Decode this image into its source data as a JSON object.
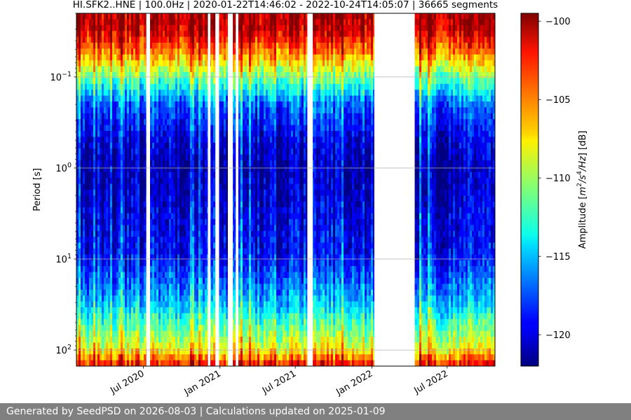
{
  "chart_data": {
    "type": "heatmap",
    "title": "HI.SFK2..HNE | 100.0Hz | 2020-01-22T14:46:02 - 2022-10-24T14:05:07 | 36665 segments",
    "ylabel": "Period [s]",
    "xlabel": "",
    "y_scale": "log",
    "y_inverted": true,
    "ylim": [
      0.02,
      150
    ],
    "y_ticks": [
      {
        "value": 0.1,
        "base": "10",
        "exp": "−1"
      },
      {
        "value": 1,
        "base": "10",
        "exp": "0"
      },
      {
        "value": 10,
        "base": "10",
        "exp": "1"
      },
      {
        "value": 100,
        "base": "10",
        "exp": "2"
      }
    ],
    "x_range": [
      "2020-01-22",
      "2022-10-24"
    ],
    "x_ticks": [
      {
        "value": "2020-07-01",
        "label": "Jul 2020"
      },
      {
        "value": "2021-01-01",
        "label": "Jan 2021"
      },
      {
        "value": "2021-07-01",
        "label": "Jul 2021"
      },
      {
        "value": "2022-01-01",
        "label": "Jan 2022"
      },
      {
        "value": "2022-07-01",
        "label": "Jul 2022"
      }
    ],
    "grid": "horizontal",
    "colormap": "jet",
    "colorbar": {
      "label": "Amplitude [m²/s⁴/Hz] [dB]",
      "label_parts": [
        {
          "text": "Amplitude [",
          "italic": false,
          "sup": false
        },
        {
          "text": "m",
          "italic": true,
          "sup": false
        },
        {
          "text": "2",
          "italic": false,
          "sup": true
        },
        {
          "text": "/",
          "italic": true,
          "sup": false
        },
        {
          "text": "s",
          "italic": true,
          "sup": false
        },
        {
          "text": "4",
          "italic": false,
          "sup": true
        },
        {
          "text": "/Hz",
          "italic": true,
          "sup": false
        },
        {
          "text": "] [dB]",
          "italic": false,
          "sup": false
        }
      ],
      "range": [
        -122,
        -99.5
      ],
      "ticks": [
        -100,
        -105,
        -110,
        -115,
        -120
      ],
      "tick_labels": [
        "−100",
        "−105",
        "−110",
        "−115",
        "−120"
      ]
    },
    "data_gaps": [
      {
        "start": "2020-07-08",
        "end": "2020-07-17"
      },
      {
        "start": "2020-12-03",
        "end": "2020-12-09"
      },
      {
        "start": "2020-12-21",
        "end": "2020-12-30"
      },
      {
        "start": "2021-01-20",
        "end": "2021-02-01"
      },
      {
        "start": "2021-02-08",
        "end": "2021-02-14"
      },
      {
        "start": "2021-07-30",
        "end": "2021-08-12"
      },
      {
        "start": "2022-01-07",
        "end": "2022-04-14"
      }
    ],
    "amplitude_profile_db": [
      {
        "period": 0.02,
        "db": -100.5
      },
      {
        "period": 0.03,
        "db": -101
      },
      {
        "period": 0.05,
        "db": -104.5
      },
      {
        "period": 0.1,
        "db": -111
      },
      {
        "period": 0.2,
        "db": -117
      },
      {
        "period": 0.5,
        "db": -120
      },
      {
        "period": 1,
        "db": -121
      },
      {
        "period": 3,
        "db": -120
      },
      {
        "period": 10,
        "db": -119
      },
      {
        "period": 30,
        "db": -115
      },
      {
        "period": 60,
        "db": -111
      },
      {
        "period": 100,
        "db": -108
      },
      {
        "period": 150,
        "db": -102
      }
    ]
  },
  "footer": {
    "text": "Generated by SeedPSD on 2026-08-03 | Calculations updated on 2025-01-09"
  }
}
